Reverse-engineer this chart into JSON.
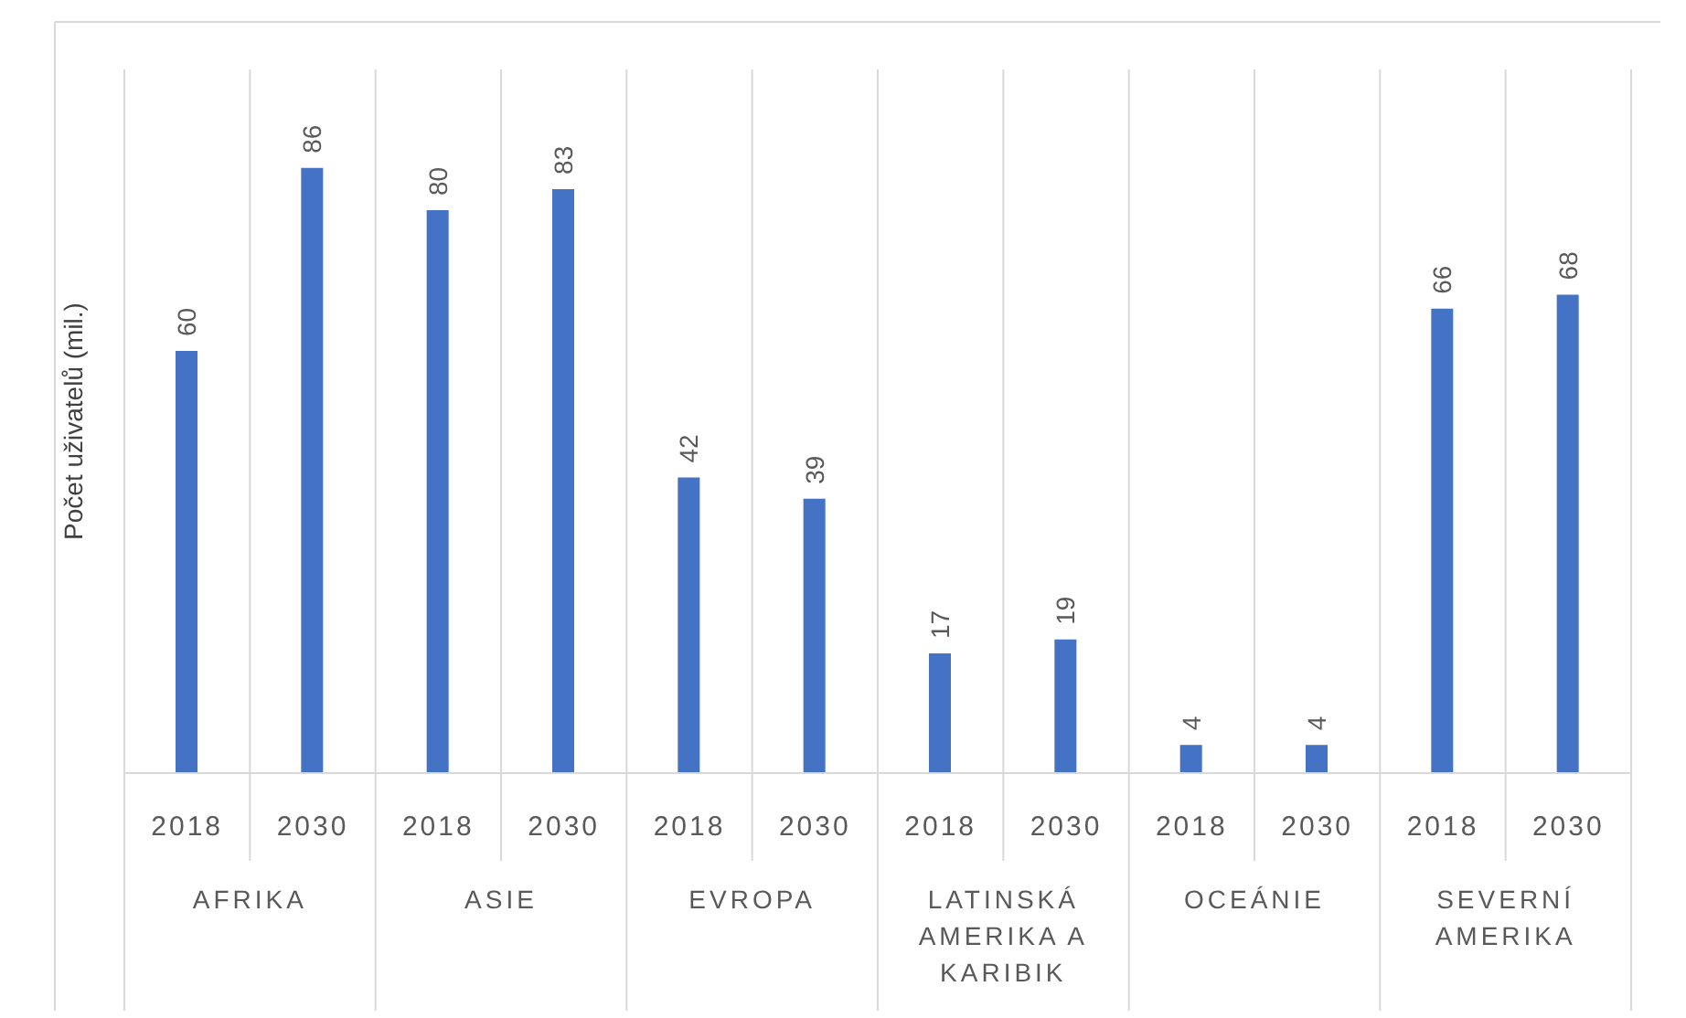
{
  "chart_data": {
    "type": "bar",
    "ylabel": "Počet uživatelů (mil.)",
    "categories": [
      "AFRIKA",
      "ASIE",
      "EVROPA",
      "LATINSKÁ AMERIKA A KARIBIK",
      "OCEÁNIE",
      "SEVERNÍ AMERIKA"
    ],
    "series": [
      {
        "name": "2018",
        "color": "#4472c4",
        "values": [
          60,
          80,
          42,
          17,
          4,
          66
        ]
      },
      {
        "name": "2030",
        "color": "#4472c4",
        "values": [
          86,
          83,
          39,
          19,
          4,
          68
        ]
      }
    ],
    "data_labels": true,
    "legend": false,
    "grid": "x"
  }
}
